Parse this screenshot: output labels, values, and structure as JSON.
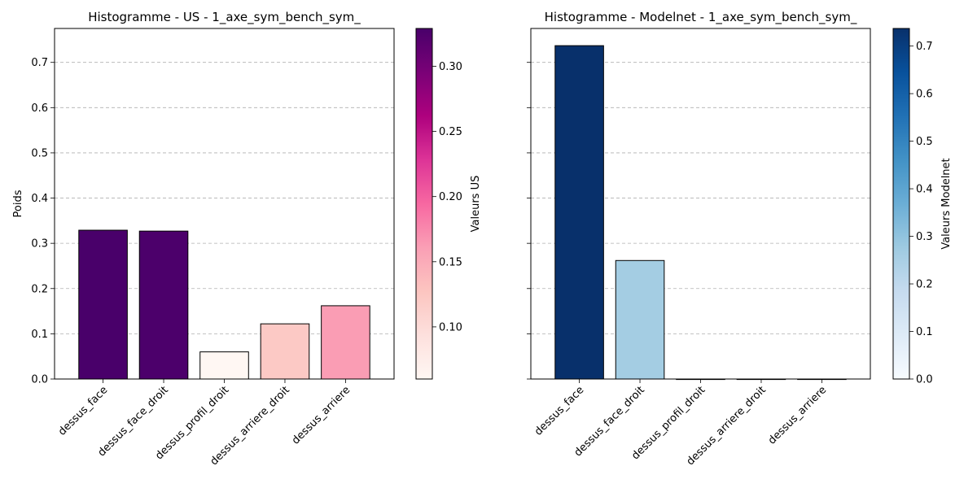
{
  "chart_data": [
    {
      "type": "bar",
      "title": "Histogramme - US - 1_axe_sym_bench_sym_",
      "ylabel": "Poids",
      "xlabel": "",
      "categories": [
        "dessus_face",
        "dessus_face_droit",
        "dessus_profil_droit",
        "dessus_arriere_droit",
        "dessus_arriere"
      ],
      "values": [
        0.329,
        0.327,
        0.06,
        0.122,
        0.162
      ],
      "ylim": [
        0,
        0.775
      ],
      "yticks": [
        "0.0",
        "0.1",
        "0.2",
        "0.3",
        "0.4",
        "0.5",
        "0.6",
        "0.7"
      ],
      "grid": "y-dashed",
      "colormap": "RdPu",
      "colorbar": {
        "label": "Valeurs US",
        "range": [
          0.06,
          0.329
        ],
        "ticks": [
          "0.10",
          "0.15",
          "0.20",
          "0.25",
          "0.30"
        ]
      }
    },
    {
      "type": "bar",
      "title": "Histogramme - Modelnet - 1_axe_sym_bench_sym_",
      "ylabel": "",
      "xlabel": "",
      "categories": [
        "dessus_face",
        "dessus_face_droit",
        "dessus_profil_droit",
        "dessus_arriere_droit",
        "dessus_arriere"
      ],
      "values": [
        0.737,
        0.262,
        0.0,
        0.0,
        0.0
      ],
      "ylim": [
        0,
        0.775
      ],
      "yticks": [],
      "grid": "y-dashed",
      "colormap": "Blues",
      "colorbar": {
        "label": "Valeurs Modelnet",
        "range": [
          0.0,
          0.737
        ],
        "ticks": [
          "0.0",
          "0.1",
          "0.2",
          "0.3",
          "0.4",
          "0.5",
          "0.6",
          "0.7"
        ]
      }
    }
  ]
}
